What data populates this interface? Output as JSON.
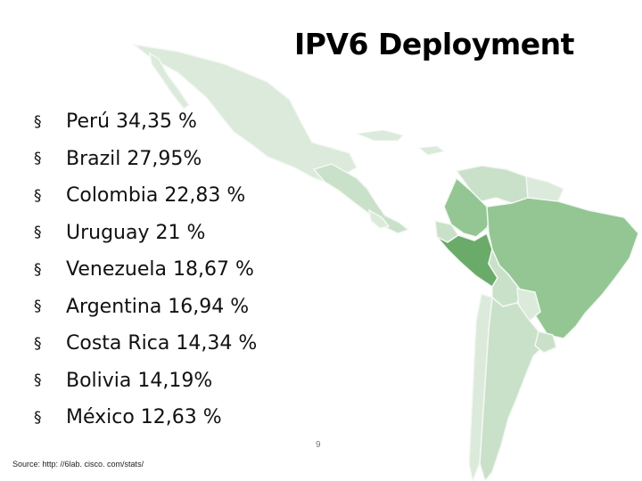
{
  "slide": {
    "title": "IPV6 Deployment",
    "bullet_symbol": "§",
    "items": [
      {
        "label": "Perú 34,35 %"
      },
      {
        "label": "Brazil 27,95%"
      },
      {
        "label": "Colombia 22,83 %"
      },
      {
        "label": "Uruguay 21 %"
      },
      {
        "label": "Venezuela 18,67 %"
      },
      {
        "label": "Argentina 16,94 %"
      },
      {
        "label": "Costa Rica 14,34 %"
      },
      {
        "label": "Bolivia 14,19%"
      },
      {
        "label": "México 12,63 %"
      }
    ],
    "page_number": "9",
    "source": "Source: http: //6lab. cisco. com/stats/"
  },
  "colors": {
    "high": "#6aab6a",
    "medium": "#93c693",
    "low": "#c9e0c9",
    "lowest": "#dbeadb",
    "outline": "#f4f8f4"
  }
}
